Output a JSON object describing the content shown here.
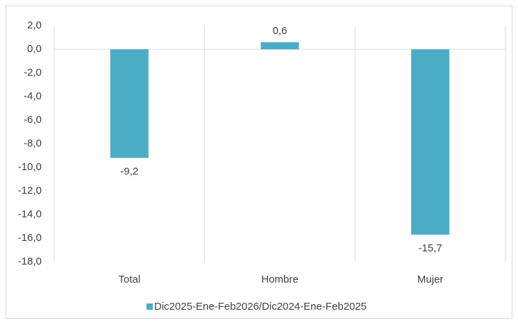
{
  "chart_data": {
    "type": "bar",
    "categories": [
      "Total",
      "Hombre",
      "Mujer"
    ],
    "series": [
      {
        "name": "Dic2025-Ene-Feb2026/Dic2024-Ene-Feb2025",
        "color": "#4bacc6",
        "values": [
          -9.2,
          0.6,
          -15.7
        ],
        "value_labels": [
          "-9,2",
          "0,6",
          "-15,7"
        ]
      }
    ],
    "ylim": [
      -18,
      2
    ],
    "yticks": [
      {
        "value": 2,
        "label": "2,0"
      },
      {
        "value": 0,
        "label": "0,0"
      },
      {
        "value": -2,
        "label": "-2,0"
      },
      {
        "value": -4,
        "label": "-4,0"
      },
      {
        "value": -6,
        "label": "-6,0"
      },
      {
        "value": -8,
        "label": "-8,0"
      },
      {
        "value": -10,
        "label": "-10,0"
      },
      {
        "value": -12,
        "label": "-12,0"
      },
      {
        "value": -14,
        "label": "-14,0"
      },
      {
        "value": -16,
        "label": "-16,0"
      },
      {
        "value": -18,
        "label": "-18,0"
      }
    ],
    "legend": "bottom"
  }
}
